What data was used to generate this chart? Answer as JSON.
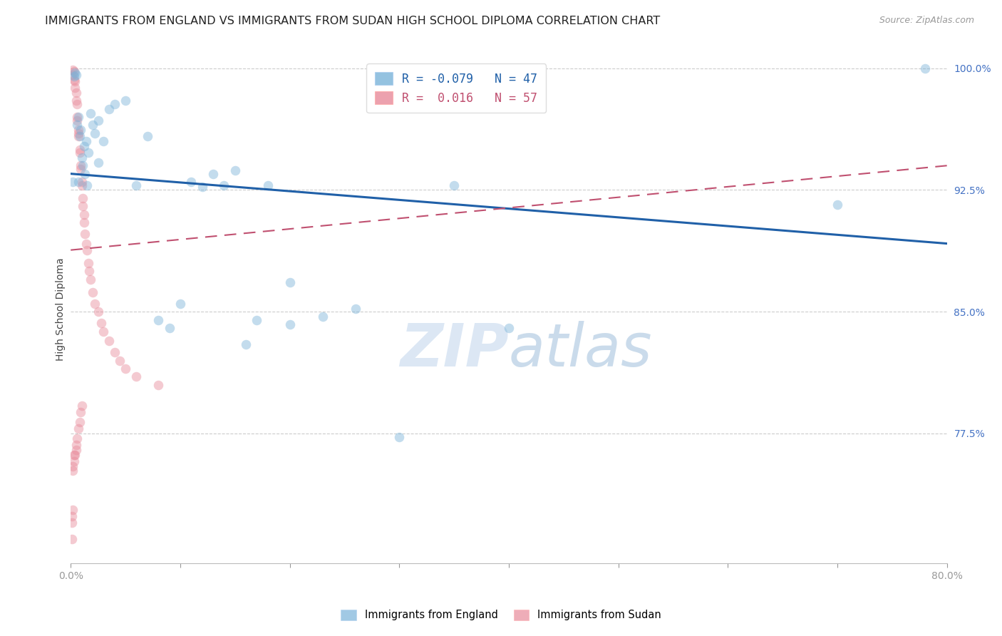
{
  "title": "IMMIGRANTS FROM ENGLAND VS IMMIGRANTS FROM SUDAN HIGH SCHOOL DIPLOMA CORRELATION CHART",
  "source": "Source: ZipAtlas.com",
  "ylabel": "High School Diploma",
  "xlim": [
    0.0,
    0.8
  ],
  "ylim": [
    0.695,
    1.008
  ],
  "yticks": [
    0.775,
    0.85,
    0.925,
    1.0
  ],
  "ytick_labels": [
    "77.5%",
    "85.0%",
    "92.5%",
    "100.0%"
  ],
  "xticks": [
    0.0,
    0.1,
    0.2,
    0.3,
    0.4,
    0.5,
    0.6,
    0.7,
    0.8
  ],
  "xtick_labels": [
    "0.0%",
    "",
    "",
    "",
    "",
    "",
    "",
    "",
    "80.0%"
  ],
  "england_color": "#7ab3d9",
  "sudan_color": "#e88a9a",
  "england_trend_color": "#2060a8",
  "sudan_trend_color": "#c05070",
  "background_color": "#ffffff",
  "grid_color": "#cccccc",
  "title_fontsize": 11.5,
  "axis_label_fontsize": 10,
  "tick_fontsize": 10,
  "marker_size": 95,
  "marker_alpha": 0.45,
  "england_x": [
    0.002,
    0.003,
    0.004,
    0.005,
    0.006,
    0.007,
    0.008,
    0.009,
    0.01,
    0.011,
    0.012,
    0.013,
    0.014,
    0.016,
    0.018,
    0.02,
    0.022,
    0.025,
    0.03,
    0.035,
    0.04,
    0.05,
    0.06,
    0.07,
    0.08,
    0.09,
    0.1,
    0.12,
    0.14,
    0.16,
    0.2,
    0.23,
    0.26,
    0.3,
    0.35,
    0.4,
    0.2,
    0.15,
    0.18,
    0.11,
    0.13,
    0.17,
    0.007,
    0.015,
    0.025,
    0.7,
    0.78
  ],
  "england_y": [
    0.93,
    0.995,
    0.997,
    0.996,
    0.965,
    0.97,
    0.958,
    0.962,
    0.945,
    0.94,
    0.952,
    0.935,
    0.955,
    0.948,
    0.972,
    0.965,
    0.96,
    0.968,
    0.955,
    0.975,
    0.978,
    0.98,
    0.928,
    0.958,
    0.845,
    0.84,
    0.855,
    0.927,
    0.928,
    0.83,
    0.842,
    0.847,
    0.852,
    0.773,
    0.928,
    0.84,
    0.868,
    0.937,
    0.928,
    0.93,
    0.935,
    0.845,
    0.93,
    0.928,
    0.942,
    0.916,
    1.0
  ],
  "sudan_x": [
    0.001,
    0.001,
    0.002,
    0.002,
    0.002,
    0.003,
    0.003,
    0.003,
    0.004,
    0.004,
    0.005,
    0.005,
    0.005,
    0.006,
    0.006,
    0.006,
    0.007,
    0.007,
    0.007,
    0.008,
    0.008,
    0.009,
    0.009,
    0.01,
    0.01,
    0.011,
    0.011,
    0.012,
    0.012,
    0.013,
    0.014,
    0.015,
    0.016,
    0.017,
    0.018,
    0.02,
    0.022,
    0.025,
    0.028,
    0.03,
    0.035,
    0.04,
    0.045,
    0.05,
    0.06,
    0.08,
    0.002,
    0.003,
    0.004,
    0.005,
    0.006,
    0.007,
    0.008,
    0.009,
    0.01,
    0.001,
    0.002
  ],
  "sudan_y": [
    0.71,
    0.724,
    0.999,
    0.996,
    0.752,
    0.998,
    0.993,
    0.762,
    0.988,
    0.992,
    0.985,
    0.98,
    0.765,
    0.978,
    0.97,
    0.968,
    0.96,
    0.958,
    0.962,
    0.95,
    0.948,
    0.94,
    0.938,
    0.93,
    0.928,
    0.92,
    0.915,
    0.91,
    0.905,
    0.898,
    0.892,
    0.888,
    0.88,
    0.875,
    0.87,
    0.862,
    0.855,
    0.85,
    0.843,
    0.838,
    0.832,
    0.825,
    0.82,
    0.815,
    0.81,
    0.805,
    0.755,
    0.758,
    0.762,
    0.768,
    0.772,
    0.778,
    0.782,
    0.788,
    0.792,
    0.72,
    0.728
  ]
}
